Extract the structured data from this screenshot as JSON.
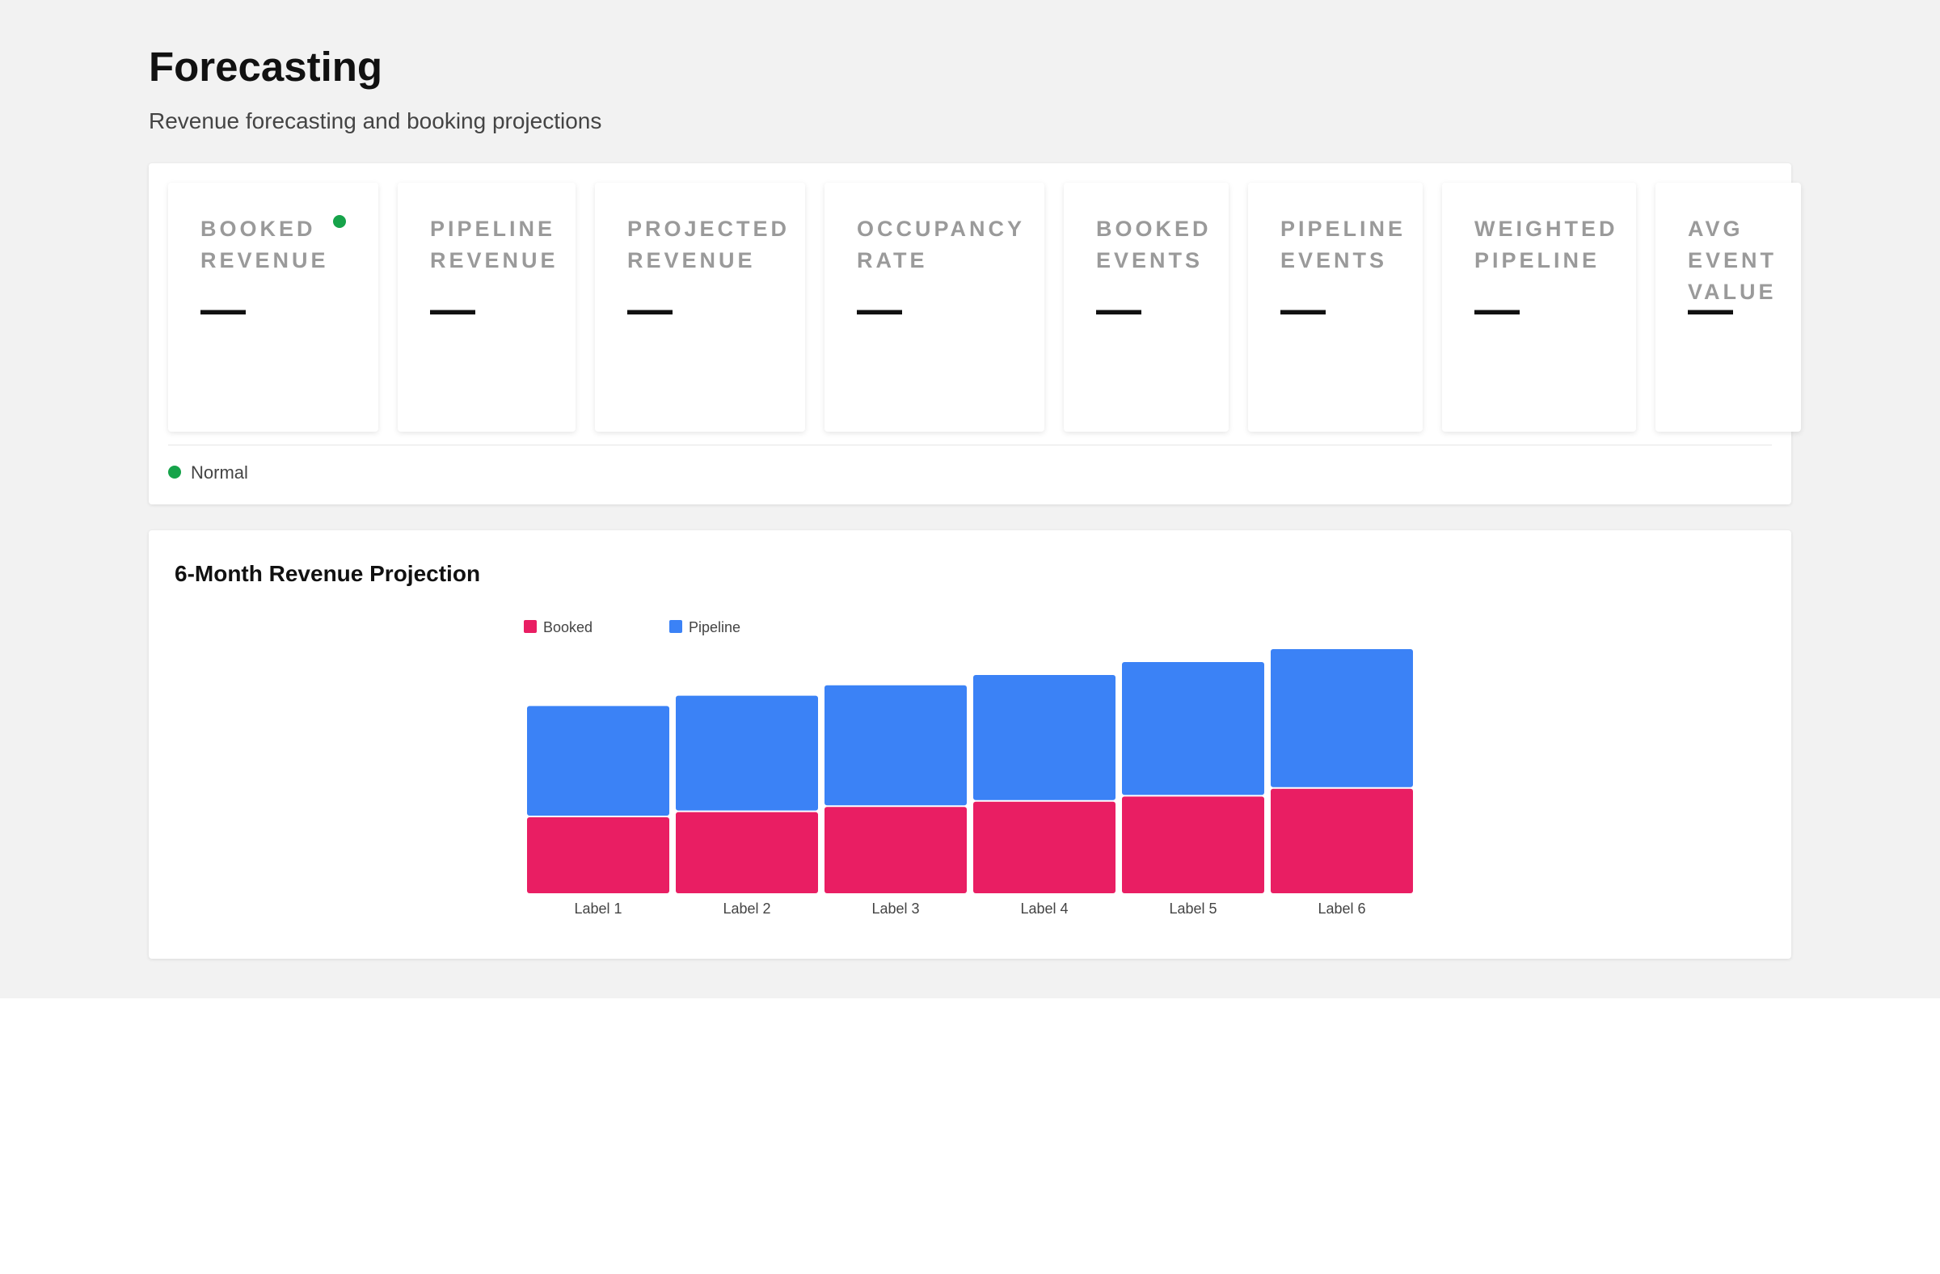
{
  "page": {
    "title": "Forecasting",
    "subtitle": "Revenue forecasting and booking projections"
  },
  "kpis": [
    {
      "label": "BOOKED REVENUE",
      "value": "—",
      "status_dot": true
    },
    {
      "label": "PIPELINE REVENUE",
      "value": "—"
    },
    {
      "label": "PROJECTED REVENUE",
      "value": "—"
    },
    {
      "label": "OCCUPANCY RATE",
      "value": "—"
    },
    {
      "label": "BOOKED EVENTS",
      "value": "—"
    },
    {
      "label": "PIPELINE EVENTS",
      "value": "—"
    },
    {
      "label": "WEIGHTED PIPELINE",
      "value": "—"
    },
    {
      "label": "AVG EVENT VALUE",
      "value": "—"
    }
  ],
  "status": {
    "label": "Normal",
    "color": "#16a34a"
  },
  "chart_data": {
    "type": "bar",
    "stacked": true,
    "title": "6-Month Revenue Projection",
    "categories": [
      "Label 1",
      "Label 2",
      "Label 3",
      "Label 4",
      "Label 5",
      "Label 6"
    ],
    "series": [
      {
        "name": "Booked",
        "color": "#e91e63",
        "values": [
          30,
          32,
          34,
          36,
          38,
          41
        ]
      },
      {
        "name": "Pipeline",
        "color": "#3b82f6",
        "values": [
          43,
          45,
          47,
          49,
          52,
          54
        ]
      }
    ],
    "ylim": [
      0,
      100
    ],
    "grid": false,
    "legend": "top-left"
  }
}
